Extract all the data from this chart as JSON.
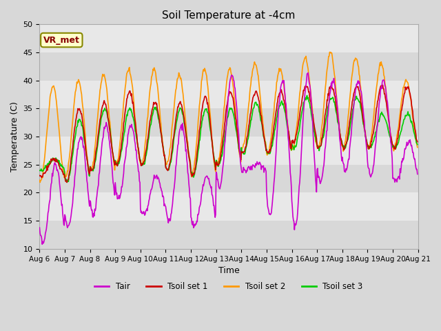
{
  "title": "Soil Temperature at -4cm",
  "xlabel": "Time",
  "ylabel": "Temperature (C)",
  "ylim": [
    10,
    50
  ],
  "colors": {
    "Tair": "#cc00cc",
    "Tsoil1": "#cc0000",
    "Tsoil2": "#ff9900",
    "Tsoil3": "#00cc00"
  },
  "annotation_text": "VR_met",
  "xtick_labels": [
    "Aug 6",
    "Aug 7",
    "Aug 8",
    "Aug 9",
    "Aug 10",
    "Aug 11",
    "Aug 12",
    "Aug 13",
    "Aug 14",
    "Aug 15",
    "Aug 16",
    "Aug 17",
    "Aug 18",
    "Aug 19",
    "Aug 20",
    "Aug 21"
  ],
  "n_days": 15,
  "bg_bands": [
    {
      "ymin": 10,
      "ymax": 15,
      "color": "#d8d8d8"
    },
    {
      "ymin": 15,
      "ymax": 20,
      "color": "#e8e8e8"
    },
    {
      "ymin": 20,
      "ymax": 25,
      "color": "#d8d8d8"
    },
    {
      "ymin": 25,
      "ymax": 30,
      "color": "#e8e8e8"
    },
    {
      "ymin": 30,
      "ymax": 35,
      "color": "#d8d8d8"
    },
    {
      "ymin": 35,
      "ymax": 40,
      "color": "#e8e8e8"
    },
    {
      "ymin": 40,
      "ymax": 45,
      "color": "#d8d8d8"
    },
    {
      "ymin": 45,
      "ymax": 50,
      "color": "#e8e8e8"
    }
  ],
  "tair_day_min": [
    11,
    14,
    16,
    19,
    16,
    15,
    14,
    21,
    24,
    16,
    14,
    22,
    24,
    23,
    22
  ],
  "tair_day_max": [
    25,
    30,
    32,
    32,
    23,
    32,
    23,
    41,
    25,
    40,
    41,
    40,
    40,
    40,
    29
  ],
  "tsoil2_day_min": [
    22,
    23,
    24,
    25,
    25,
    25,
    23,
    25,
    28,
    27,
    28,
    28,
    28,
    28,
    28
  ],
  "tsoil2_day_max": [
    39,
    40,
    41,
    42,
    42,
    41,
    42,
    42,
    43,
    42,
    44,
    45,
    44,
    43,
    40
  ],
  "tsoil1_day_min": [
    23,
    22,
    24,
    25,
    25,
    24,
    23,
    25,
    27,
    27,
    29,
    28,
    28,
    28,
    28
  ],
  "tsoil1_day_max": [
    26,
    35,
    36,
    38,
    36,
    36,
    37,
    38,
    38,
    38,
    39,
    39,
    39,
    39,
    39
  ],
  "tsoil3_day_min": [
    24,
    22,
    24,
    25,
    25,
    24,
    23,
    25,
    27,
    27,
    28,
    28,
    28,
    28,
    28
  ],
  "tsoil3_day_max": [
    26,
    33,
    35,
    35,
    35,
    35,
    35,
    35,
    36,
    36,
    37,
    37,
    37,
    34,
    34
  ]
}
